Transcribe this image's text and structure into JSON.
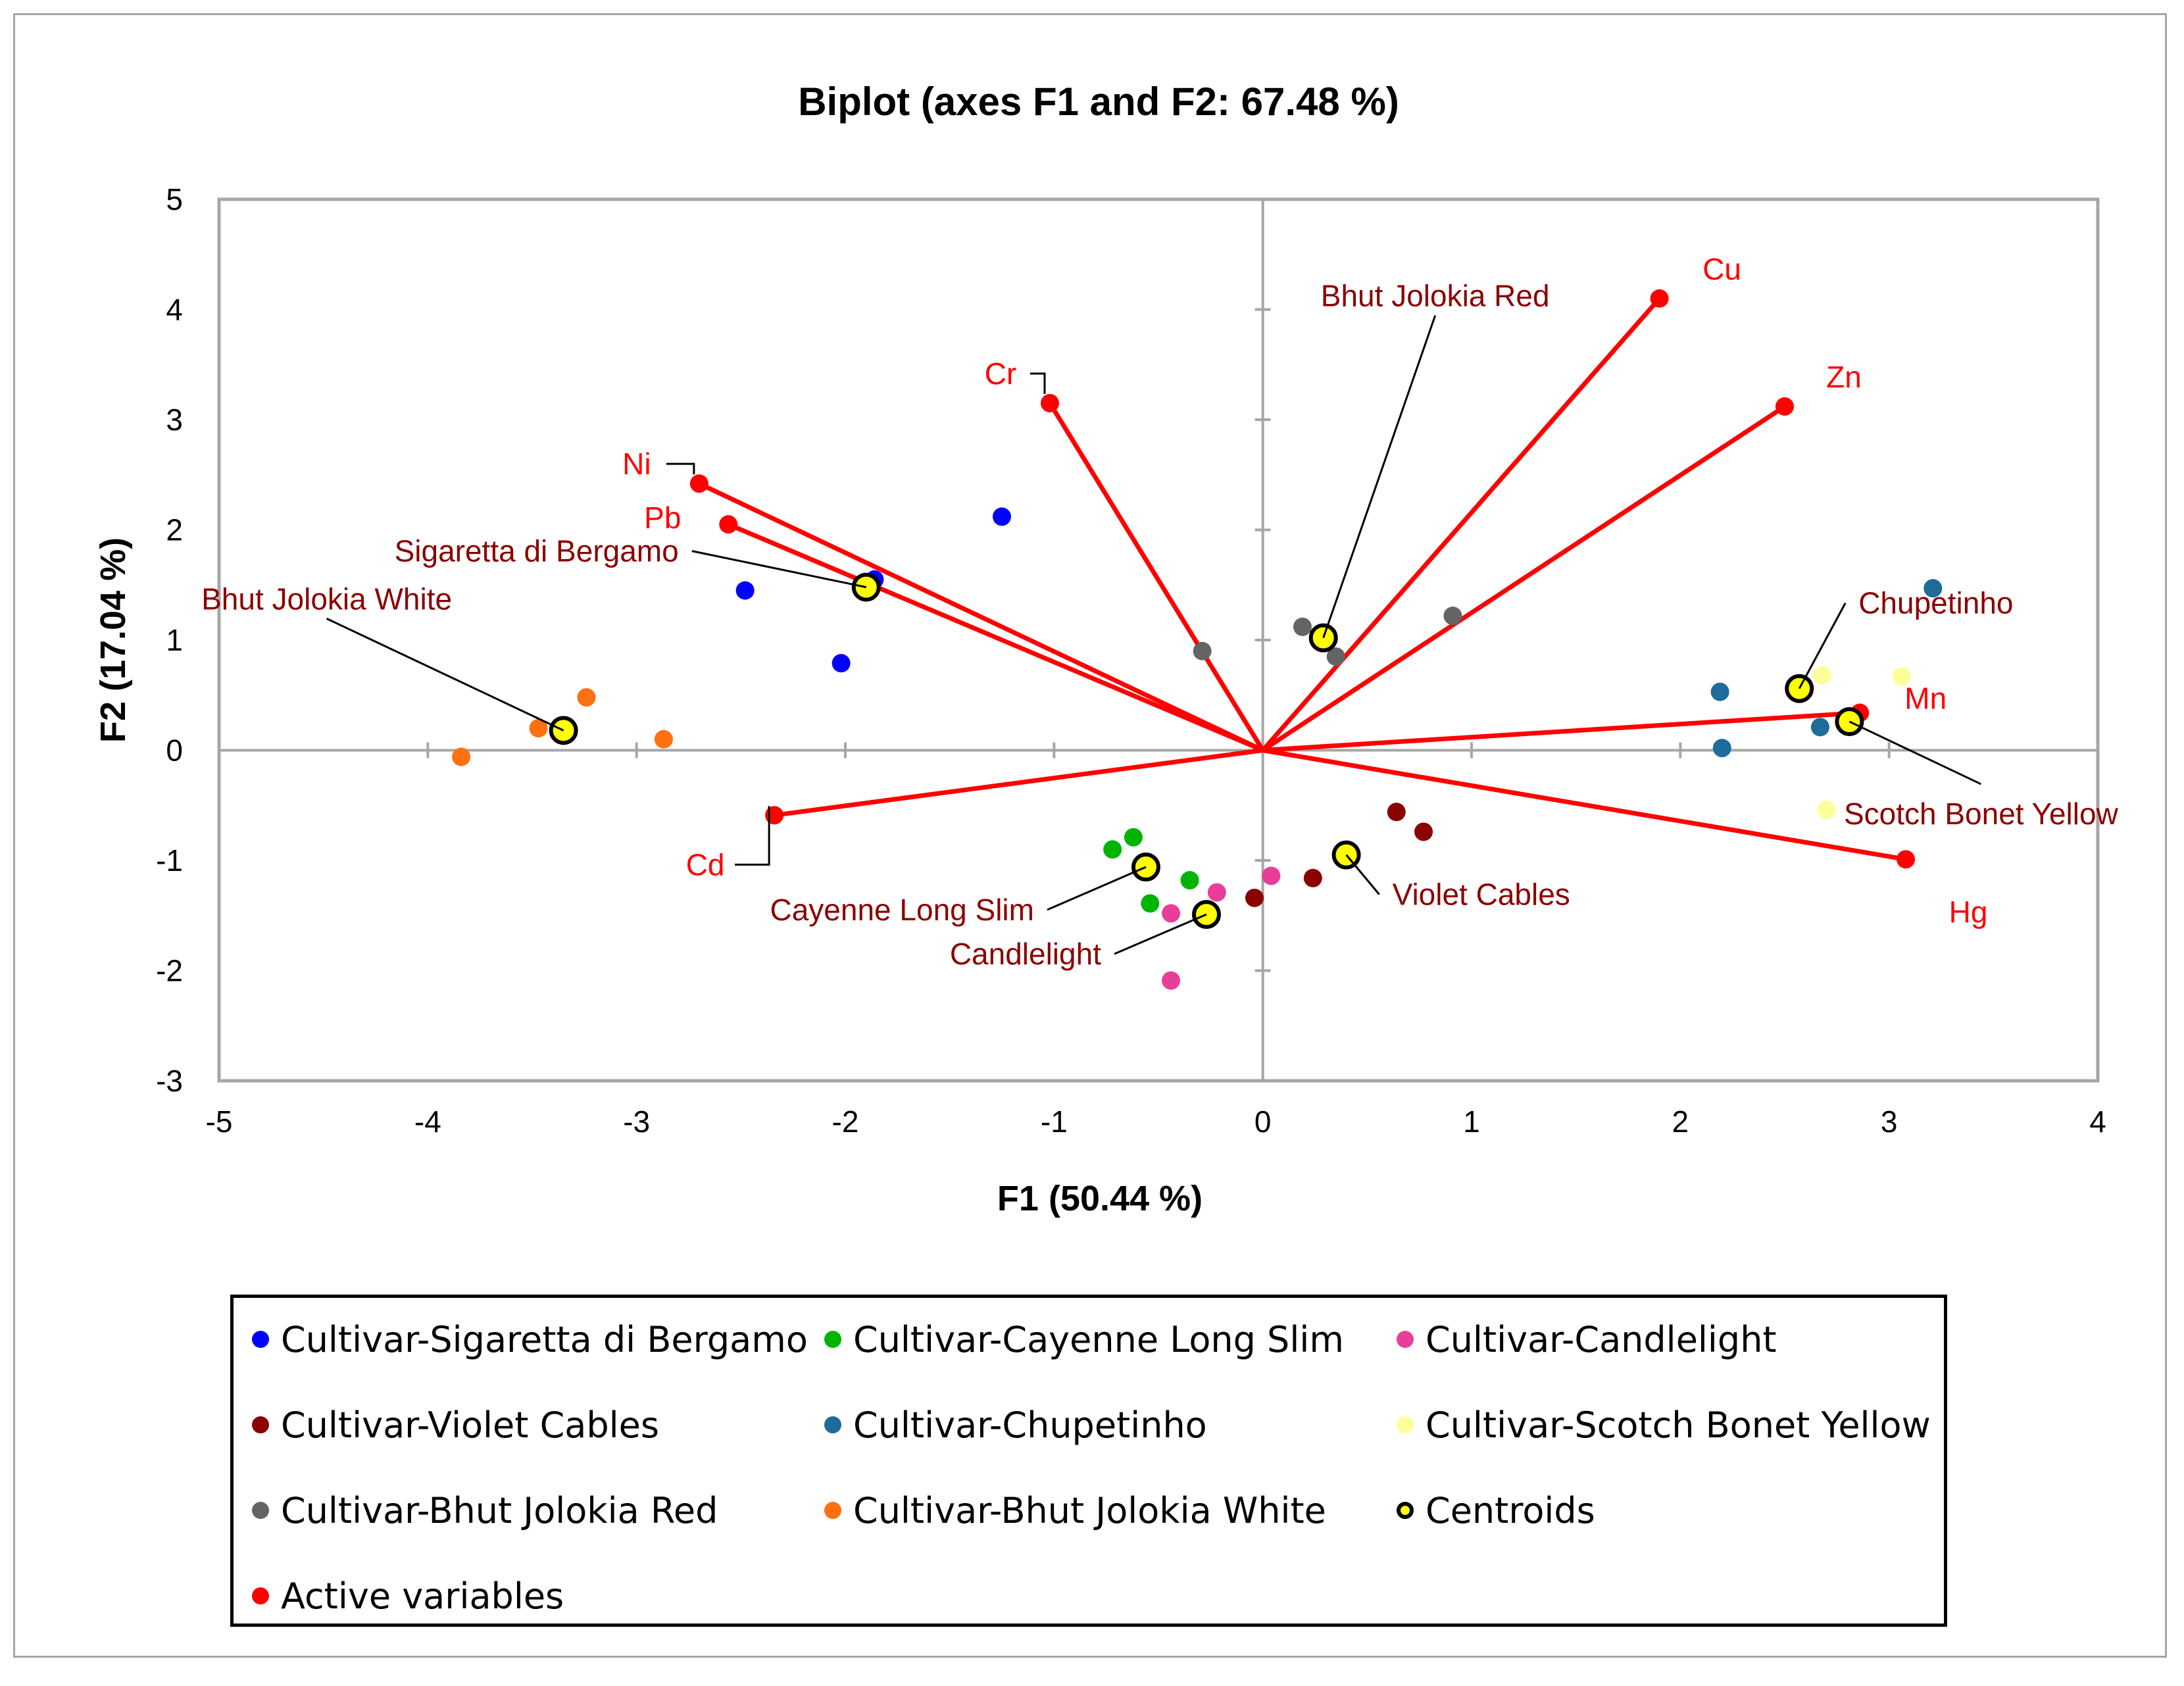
{
  "chart_data": {
    "type": "scatter",
    "title": "Biplot (axes F1 and F2: 67.48 %)",
    "xlabel": "F1 (50.44 %)",
    "ylabel": "F2 (17.04 %)",
    "xlim": [
      -5,
      4
    ],
    "ylim": [
      -3,
      5
    ],
    "xticks": [
      -5,
      -4,
      -3,
      -2,
      -1,
      0,
      1,
      2,
      3,
      4
    ],
    "yticks": [
      -3,
      -2,
      -1,
      0,
      1,
      2,
      3,
      4,
      5
    ],
    "groups": [
      {
        "name": "Cultivar-Sigaretta di Bergamo",
        "color": "#0000ff",
        "points": [
          [
            -1.25,
            2.12
          ],
          [
            -2.48,
            1.45
          ],
          [
            -1.86,
            1.55
          ],
          [
            -2.02,
            0.79
          ]
        ]
      },
      {
        "name": "Cultivar-Cayenne Long Slim",
        "color": "#00b400",
        "points": [
          [
            -0.62,
            -0.79
          ],
          [
            -0.72,
            -0.9
          ],
          [
            -0.35,
            -1.18
          ],
          [
            -0.54,
            -1.39
          ]
        ]
      },
      {
        "name": "Cultivar-Candlelight",
        "color": "#e83e9a",
        "points": [
          [
            0.04,
            -1.14
          ],
          [
            -0.22,
            -1.29
          ],
          [
            -0.44,
            -1.48
          ],
          [
            -0.44,
            -2.09
          ]
        ]
      },
      {
        "name": "Cultivar-Violet Cables",
        "color": "#8b0000",
        "points": [
          [
            0.64,
            -0.56
          ],
          [
            0.77,
            -0.74
          ],
          [
            0.24,
            -1.16
          ],
          [
            -0.04,
            -1.34
          ]
        ]
      },
      {
        "name": "Cultivar-Chupetinho",
        "color": "#1f6b9a",
        "points": [
          [
            3.21,
            1.47
          ],
          [
            2.19,
            0.53
          ],
          [
            2.67,
            0.21
          ],
          [
            2.2,
            0.02
          ]
        ]
      },
      {
        "name": "Cultivar-Scotch Bonet Yellow",
        "color": "#ffff99",
        "points": [
          [
            2.68,
            0.68
          ],
          [
            3.06,
            0.67
          ],
          [
            2.7,
            -0.54
          ]
        ]
      },
      {
        "name": "Cultivar-Bhut Jolokia Red",
        "color": "#646464",
        "points": [
          [
            0.91,
            1.22
          ],
          [
            0.19,
            1.12
          ],
          [
            0.35,
            0.85
          ],
          [
            -0.29,
            0.9
          ]
        ]
      },
      {
        "name": "Cultivar-Bhut Jolokia White",
        "color": "#ff7010",
        "points": [
          [
            -3.24,
            0.48
          ],
          [
            -3.47,
            0.2
          ],
          [
            -2.87,
            0.1
          ],
          [
            -3.84,
            -0.06
          ]
        ]
      }
    ],
    "centroids": {
      "name": "Centroids",
      "color": "#ffff00",
      "points": [
        {
          "label": "Sigaretta di Bergamo",
          "x": -1.9,
          "y": 1.48
        },
        {
          "label": "Bhut Jolokia White",
          "x": -3.35,
          "y": 0.18
        },
        {
          "label": "Bhut Jolokia Red",
          "x": 0.29,
          "y": 1.02
        },
        {
          "label": "Chupetinho",
          "x": 2.57,
          "y": 0.56
        },
        {
          "label": "Scotch Bonet Yellow",
          "x": 2.81,
          "y": 0.26
        },
        {
          "label": "Cayenne Long Slim",
          "x": -0.56,
          "y": -1.06
        },
        {
          "label": "Violet Cables",
          "x": 0.4,
          "y": -0.95
        },
        {
          "label": "Candlelight",
          "x": -0.27,
          "y": -1.49
        }
      ]
    },
    "variables": {
      "name": "Active variables",
      "color": "#ff0000",
      "points": [
        {
          "label": "Cu",
          "x": 1.9,
          "y": 4.1
        },
        {
          "label": "Zn",
          "x": 2.5,
          "y": 3.12
        },
        {
          "label": "Cr",
          "x": -1.02,
          "y": 3.15
        },
        {
          "label": "Ni",
          "x": -2.7,
          "y": 2.42
        },
        {
          "label": "Pb",
          "x": -2.56,
          "y": 2.05
        },
        {
          "label": "Mn",
          "x": 2.86,
          "y": 0.34
        },
        {
          "label": "Hg",
          "x": 3.08,
          "y": -0.99
        },
        {
          "label": "Cd",
          "x": -2.34,
          "y": -0.59
        }
      ]
    }
  },
  "legend": {
    "items": [
      {
        "label": "Cultivar-Sigaretta di Bergamo",
        "color": "#0000ff"
      },
      {
        "label": "Cultivar-Cayenne Long Slim",
        "color": "#00b400"
      },
      {
        "label": "Cultivar-Candlelight",
        "color": "#e83e9a"
      },
      {
        "label": "Cultivar-Violet Cables",
        "color": "#8b0000"
      },
      {
        "label": "Cultivar-Chupetinho",
        "color": "#1f6b9a"
      },
      {
        "label": "Cultivar-Scotch Bonet Yellow",
        "color": "#ffff99"
      },
      {
        "label": "Cultivar-Bhut Jolokia Red",
        "color": "#646464"
      },
      {
        "label": "Cultivar-Bhut Jolokia White",
        "color": "#ff7010"
      },
      {
        "label": "Centroids",
        "color": "#ffff00"
      },
      {
        "label": "Active variables",
        "color": "#ff0000"
      }
    ]
  }
}
